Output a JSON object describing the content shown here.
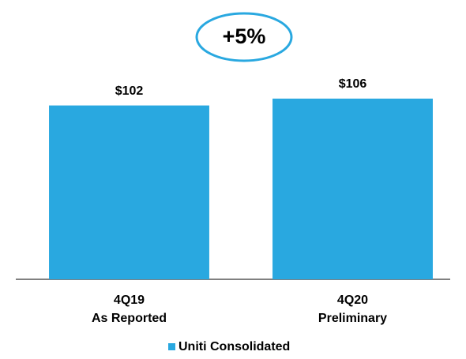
{
  "chart_data": {
    "type": "bar",
    "annotation": "+5%",
    "categories": [
      [
        "4Q19",
        "As Reported"
      ],
      [
        "4Q20",
        "Preliminary"
      ]
    ],
    "series": [
      {
        "name": "Uniti Consolidated",
        "color": "#29a8e0",
        "values": [
          102,
          106
        ],
        "value_labels": [
          "$102",
          "$106"
        ]
      }
    ]
  }
}
